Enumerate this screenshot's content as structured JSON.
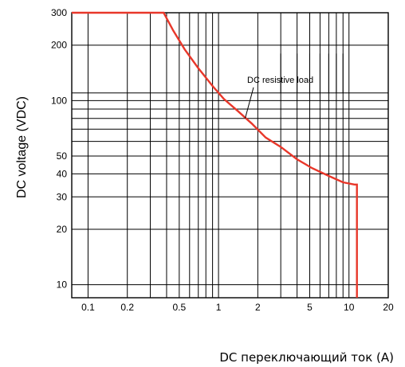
{
  "chart_data": {
    "type": "line",
    "title": "",
    "xlabel": "DC переключающий ток (A)",
    "ylabel": "DC voltage (VDC)",
    "x_scale": "log",
    "y_scale": "log",
    "xlim": [
      0.075,
      20
    ],
    "ylim": [
      8.5,
      300
    ],
    "grid": true,
    "x_ticks": [
      0.1,
      0.2,
      0.5,
      1,
      2,
      5,
      10,
      20
    ],
    "x_tick_labels": [
      "0.1",
      "0.2",
      "0.5",
      "1",
      "2",
      "5",
      "10",
      "20"
    ],
    "y_ticks": [
      10,
      20,
      30,
      40,
      50,
      100,
      200,
      300
    ],
    "y_tick_labels": [
      "10",
      "20",
      "30",
      "40",
      "50",
      "100",
      "200",
      "300"
    ],
    "annotation": "DC resistive load",
    "series_color": "#e8372a",
    "series": [
      {
        "x": [
          0.075,
          0.38,
          0.45,
          0.55,
          0.7,
          0.9,
          1.1,
          1.4,
          1.8,
          2.3,
          3.0,
          4.0,
          5.2,
          7.0,
          9.0,
          11.0,
          11.5,
          11.5
        ],
        "y": [
          300,
          300,
          240,
          190,
          150,
          120,
          102,
          88,
          75,
          63,
          56,
          48,
          43,
          39,
          36,
          35,
          35,
          8.5
        ]
      }
    ]
  }
}
